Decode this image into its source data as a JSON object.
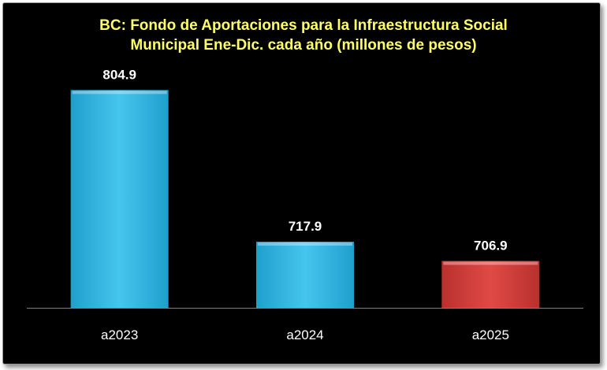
{
  "chart_data": {
    "type": "bar",
    "title_lines": [
      "BC: Fondo de Aportaciones para la Infraestructura Social",
      "Municipal Ene-Dic. cada año (millones de pesos)"
    ],
    "categories": [
      "a2023",
      "a2024",
      "a2025"
    ],
    "values": [
      804.9,
      717.9,
      706.9
    ],
    "value_labels": [
      "804.9",
      "717.9",
      "706.9"
    ],
    "ylim": [
      680,
      815
    ],
    "xlabel": "",
    "ylabel": "",
    "grid": false,
    "legend": "none",
    "colors": {
      "default": "#3fc0e8",
      "highlight": "#d9423f",
      "highlight_category": "a2025",
      "title": "#ffff66",
      "background": "#000000",
      "axis": "#7f7f7f"
    }
  }
}
